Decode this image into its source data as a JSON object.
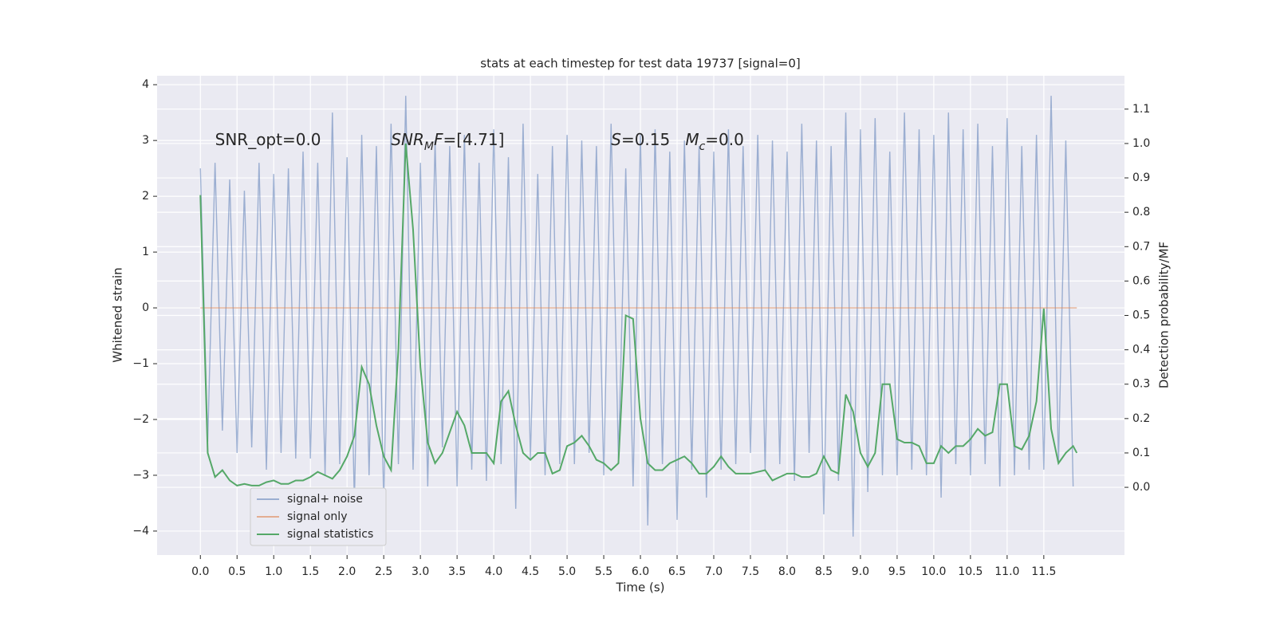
{
  "chart_data": {
    "type": "line",
    "title": "stats at each timestep for test data 19737 [signal=0]",
    "xlabel": "Time (s)",
    "ylabel": "Whitened strain",
    "y2label": "Detection probability/MF",
    "xlim": [
      -0.59,
      12.6
    ],
    "ylim": [
      -4.43,
      4.16
    ],
    "y2lim": [
      -0.197,
      1.197
    ],
    "xticks": [
      {
        "value": 0,
        "label": "0.0"
      },
      {
        "value": 0.5,
        "label": "0.5"
      },
      {
        "value": 1,
        "label": "1.0"
      },
      {
        "value": 1.5,
        "label": "1.5"
      },
      {
        "value": 2,
        "label": "2.0"
      },
      {
        "value": 2.5,
        "label": "2.5"
      },
      {
        "value": 3,
        "label": "3.0"
      },
      {
        "value": 3.5,
        "label": "3.5"
      },
      {
        "value": 4,
        "label": "4.0"
      },
      {
        "value": 4.5,
        "label": "4.5"
      },
      {
        "value": 5,
        "label": "5.0"
      },
      {
        "value": 5.5,
        "label": "5.5"
      },
      {
        "value": 6,
        "label": "6.0"
      },
      {
        "value": 6.5,
        "label": "6.5"
      },
      {
        "value": 7,
        "label": "7.0"
      },
      {
        "value": 7.5,
        "label": "7.5"
      },
      {
        "value": 8,
        "label": "8.0"
      },
      {
        "value": 8.5,
        "label": "8.5"
      },
      {
        "value": 9,
        "label": "9.0"
      },
      {
        "value": 9.5,
        "label": "9.5"
      },
      {
        "value": 10,
        "label": "10.0"
      },
      {
        "value": 10.5,
        "label": "10.5"
      },
      {
        "value": 11,
        "label": "11.0"
      },
      {
        "value": 11.5,
        "label": "11.5"
      }
    ],
    "yticks": [
      {
        "value": -4,
        "label": "−4"
      },
      {
        "value": -3,
        "label": "−3"
      },
      {
        "value": -2,
        "label": "−2"
      },
      {
        "value": -1,
        "label": "−1"
      },
      0,
      1,
      2,
      3,
      4
    ],
    "y2ticks": [
      {
        "value": 0,
        "label": "0.0"
      },
      {
        "value": 0.1,
        "label": "0.1"
      },
      {
        "value": 0.2,
        "label": "0.2"
      },
      {
        "value": 0.3,
        "label": "0.3"
      },
      {
        "value": 0.4,
        "label": "0.4"
      },
      {
        "value": 0.5,
        "label": "0.5"
      },
      {
        "value": 0.6,
        "label": "0.6"
      },
      {
        "value": 0.7,
        "label": "0.7"
      },
      {
        "value": 0.8,
        "label": "0.8"
      },
      {
        "value": 0.9,
        "label": "0.9"
      },
      {
        "value": 1,
        "label": "1.0"
      },
      {
        "value": 1.1,
        "label": "1.1"
      }
    ],
    "grid": true,
    "legend": "lower left",
    "annotations": [
      {
        "x": 0.2,
        "y": 3.0,
        "parts": [
          {
            "text": "SNR_opt=0.0"
          }
        ]
      },
      {
        "x": 2.6,
        "y": 3.0,
        "parts": [
          {
            "text": "SNR",
            "italic": true
          },
          {
            "text": "M",
            "italic": true,
            "sub": true
          },
          {
            "text": "F",
            "italic": true
          },
          {
            "text": "=[4.71]"
          }
        ]
      },
      {
        "x": 5.6,
        "y": 3.0,
        "parts": [
          {
            "text": "S",
            "italic": true
          },
          {
            "text": "=0.15   "
          },
          {
            "text": "M",
            "italic": true
          },
          {
            "text": "c",
            "italic": true,
            "sub": true
          },
          {
            "text": "=0.0"
          }
        ]
      }
    ],
    "series": [
      {
        "name": "signal+ noise",
        "color": "#4c72b0",
        "opacity": 0.5,
        "x": [
          0,
          0.1,
          0.2,
          0.3,
          0.4,
          0.5,
          0.6,
          0.7,
          0.8,
          0.9,
          1,
          1.1,
          1.2,
          1.3,
          1.4,
          1.5,
          1.6,
          1.7,
          1.8,
          1.9,
          2,
          2.1,
          2.2,
          2.3,
          2.4,
          2.5,
          2.6,
          2.7,
          2.8,
          2.9,
          3,
          3.1,
          3.2,
          3.3,
          3.4,
          3.5,
          3.6,
          3.7,
          3.8,
          3.9,
          4,
          4.1,
          4.2,
          4.3,
          4.4,
          4.5,
          4.6,
          4.7,
          4.8,
          4.9,
          5,
          5.1,
          5.2,
          5.3,
          5.4,
          5.5,
          5.6,
          5.7,
          5.8,
          5.9,
          6,
          6.1,
          6.2,
          6.3,
          6.4,
          6.5,
          6.6,
          6.7,
          6.8,
          6.9,
          7,
          7.1,
          7.2,
          7.3,
          7.4,
          7.5,
          7.6,
          7.7,
          7.8,
          7.9,
          8,
          8.1,
          8.2,
          8.3,
          8.4,
          8.5,
          8.6,
          8.7,
          8.8,
          8.9,
          9,
          9.1,
          9.2,
          9.3,
          9.4,
          9.5,
          9.6,
          9.7,
          9.8,
          9.9,
          10,
          10.1,
          10.2,
          10.3,
          10.4,
          10.5,
          10.6,
          10.7,
          10.8,
          10.9,
          11,
          11.1,
          11.2,
          11.3,
          11.4,
          11.5,
          11.6,
          11.7,
          11.8,
          11.9
        ],
        "values": [
          2.5,
          -2.4,
          2.6,
          -2.2,
          2.3,
          -2.6,
          2.1,
          -2.5,
          2.6,
          -2.9,
          2.4,
          -2.6,
          2.5,
          -2.7,
          2.8,
          -2.7,
          2.6,
          -3.0,
          3.5,
          -2.8,
          2.7,
          -3.5,
          3.1,
          -3.0,
          2.9,
          -3.5,
          3.3,
          -2.8,
          3.8,
          -2.9,
          2.6,
          -3.2,
          3.0,
          -2.5,
          2.9,
          -3.2,
          3.1,
          -2.9,
          2.6,
          -3.1,
          3.2,
          -2.8,
          2.7,
          -3.6,
          3.3,
          -2.7,
          2.4,
          -3.0,
          2.9,
          -2.8,
          3.1,
          -2.8,
          3.0,
          -2.6,
          2.9,
          -3.0,
          3.3,
          -2.7,
          2.5,
          -3.2,
          3.1,
          -3.9,
          3.2,
          -2.8,
          2.8,
          -3.8,
          3.0,
          -2.9,
          2.9,
          -3.4,
          2.8,
          -2.9,
          3.2,
          -2.8,
          2.9,
          -2.6,
          3.1,
          -2.9,
          3.0,
          -2.8,
          2.8,
          -3.1,
          3.3,
          -2.6,
          3.0,
          -3.7,
          2.9,
          -3.1,
          3.5,
          -4.1,
          3.2,
          -3.3,
          3.4,
          -3.0,
          2.8,
          -3.0,
          3.5,
          -2.9,
          3.2,
          -3.0,
          3.1,
          -3.4,
          3.5,
          -2.8,
          3.2,
          -3.0,
          3.3,
          -2.8,
          2.9,
          -3.2,
          3.4,
          -3.0,
          2.9,
          -2.9,
          3.1,
          -2.9,
          3.8,
          -2.8,
          3.0,
          -3.2
        ]
      },
      {
        "name": "signal only",
        "color": "#dd8452",
        "opacity": 0.6,
        "x": [
          0,
          11.95
        ],
        "values": [
          0,
          0
        ]
      },
      {
        "name": "signal statistics",
        "color": "#55a868",
        "axis": "y2",
        "x": [
          0,
          0.1,
          0.2,
          0.3,
          0.4,
          0.5,
          0.6,
          0.7,
          0.8,
          0.9,
          1,
          1.1,
          1.2,
          1.3,
          1.4,
          1.5,
          1.6,
          1.7,
          1.8,
          1.9,
          2,
          2.1,
          2.2,
          2.3,
          2.4,
          2.5,
          2.6,
          2.7,
          2.8,
          2.9,
          3,
          3.1,
          3.2,
          3.3,
          3.4,
          3.5,
          3.6,
          3.7,
          3.8,
          3.9,
          4,
          4.1,
          4.2,
          4.3,
          4.4,
          4.5,
          4.6,
          4.7,
          4.8,
          4.9,
          5,
          5.1,
          5.2,
          5.3,
          5.4,
          5.5,
          5.6,
          5.7,
          5.8,
          5.9,
          6,
          6.1,
          6.2,
          6.3,
          6.4,
          6.5,
          6.6,
          6.7,
          6.8,
          6.9,
          7,
          7.1,
          7.2,
          7.3,
          7.4,
          7.5,
          7.6,
          7.7,
          7.8,
          7.9,
          8,
          8.1,
          8.2,
          8.3,
          8.4,
          8.5,
          8.6,
          8.7,
          8.8,
          8.9,
          9,
          9.1,
          9.2,
          9.3,
          9.4,
          9.5,
          9.6,
          9.7,
          9.8,
          9.9,
          10,
          10.1,
          10.2,
          10.3,
          10.4,
          10.5,
          10.6,
          10.7,
          10.8,
          10.9,
          11,
          11.1,
          11.2,
          11.3,
          11.4,
          11.5,
          11.6,
          11.7,
          11.8,
          11.9,
          11.95
        ],
        "values": [
          0.85,
          0.1,
          0.03,
          0.05,
          0.02,
          0.005,
          0.01,
          0.005,
          0.005,
          0.015,
          0.02,
          0.01,
          0.01,
          0.02,
          0.02,
          0.03,
          0.045,
          0.035,
          0.025,
          0.05,
          0.09,
          0.15,
          0.35,
          0.3,
          0.18,
          0.09,
          0.05,
          0.4,
          1.0,
          0.75,
          0.35,
          0.13,
          0.07,
          0.1,
          0.16,
          0.22,
          0.18,
          0.1,
          0.1,
          0.1,
          0.07,
          0.25,
          0.28,
          0.18,
          0.1,
          0.08,
          0.1,
          0.1,
          0.04,
          0.05,
          0.12,
          0.13,
          0.15,
          0.12,
          0.08,
          0.07,
          0.05,
          0.07,
          0.5,
          0.49,
          0.2,
          0.07,
          0.05,
          0.05,
          0.07,
          0.08,
          0.09,
          0.07,
          0.04,
          0.04,
          0.06,
          0.09,
          0.06,
          0.04,
          0.04,
          0.04,
          0.045,
          0.05,
          0.02,
          0.03,
          0.04,
          0.04,
          0.03,
          0.03,
          0.04,
          0.09,
          0.05,
          0.04,
          0.27,
          0.22,
          0.1,
          0.06,
          0.1,
          0.3,
          0.3,
          0.14,
          0.13,
          0.13,
          0.12,
          0.07,
          0.07,
          0.12,
          0.1,
          0.12,
          0.12,
          0.14,
          0.17,
          0.15,
          0.16,
          0.3,
          0.3,
          0.12,
          0.11,
          0.15,
          0.25,
          0.52,
          0.17,
          0.07,
          0.1,
          0.12,
          0.1
        ]
      }
    ]
  }
}
